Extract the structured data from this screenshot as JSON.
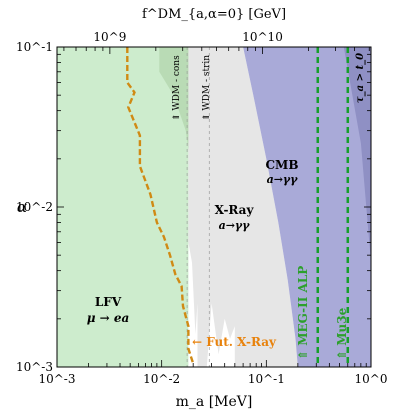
{
  "chart_data": {
    "type": "area",
    "xlabel": "m_a [MeV]",
    "ylabel": "α",
    "top_xlabel": "f^DM_{a,α=0} [GeV]",
    "x_scale": "log",
    "y_scale": "log",
    "xlim": [
      0.001,
      1
    ],
    "ylim": [
      0.001,
      0.1
    ],
    "x_ticks": [
      {
        "value": 0.001,
        "label": "10^-3"
      },
      {
        "value": 0.01,
        "label": "10^-2"
      },
      {
        "value": 0.1,
        "label": "10^-1"
      },
      {
        "value": 1,
        "label": "10^0"
      }
    ],
    "y_ticks": [
      {
        "value": 0.001,
        "label": "10^-3"
      },
      {
        "value": 0.01,
        "label": "10^-2"
      },
      {
        "value": 0.1,
        "label": "10^-1"
      }
    ],
    "top_ticks": [
      {
        "value": 1000000000,
        "label": "10^9",
        "m_a": 0.0032
      },
      {
        "value": 10000000000,
        "label": "10^10",
        "m_a": 0.092
      }
    ],
    "colors": {
      "lfv": "#cdeccd",
      "wdm": "#b9dbb5",
      "xray": "#e6e6e6",
      "cmb": "#a9aad8",
      "cmb_dark": "#8f90c4",
      "fut_xray": "#d08a14",
      "meg": "#16a02a",
      "label_green": "#2ca02c",
      "label_orange": "#e8820c"
    },
    "regions": [
      {
        "name": "LFV",
        "sublabel": "μ → ea",
        "boundary_m_a": 0.018
      },
      {
        "name": "X-Ray",
        "sublabel": "a→γγ"
      },
      {
        "name": "CMB",
        "sublabel": "a→γγ"
      },
      {
        "name": "WDM - cons"
      },
      {
        "name": "WDM - strin"
      },
      {
        "name": "τ_a > t_0"
      }
    ],
    "series": [
      {
        "name": "Fut. X-Ray",
        "style": "dashed",
        "points": [
          [
            0.0047,
            0.1
          ],
          [
            0.0047,
            0.06
          ],
          [
            0.0055,
            0.052
          ],
          [
            0.0048,
            0.042
          ],
          [
            0.0062,
            0.028
          ],
          [
            0.0062,
            0.018
          ],
          [
            0.0078,
            0.012
          ],
          [
            0.009,
            0.008
          ],
          [
            0.0105,
            0.0065
          ],
          [
            0.012,
            0.005
          ],
          [
            0.0135,
            0.0038
          ],
          [
            0.0155,
            0.0032
          ],
          [
            0.016,
            0.0024
          ],
          [
            0.018,
            0.0018
          ],
          [
            0.018,
            0.0013
          ],
          [
            0.02,
            0.00105
          ]
        ]
      },
      {
        "name": "MEG-II ALP",
        "style": "dashed",
        "m_a": 0.31
      },
      {
        "name": "Mu3e",
        "style": "dashed",
        "m_a": 0.6
      }
    ]
  }
}
